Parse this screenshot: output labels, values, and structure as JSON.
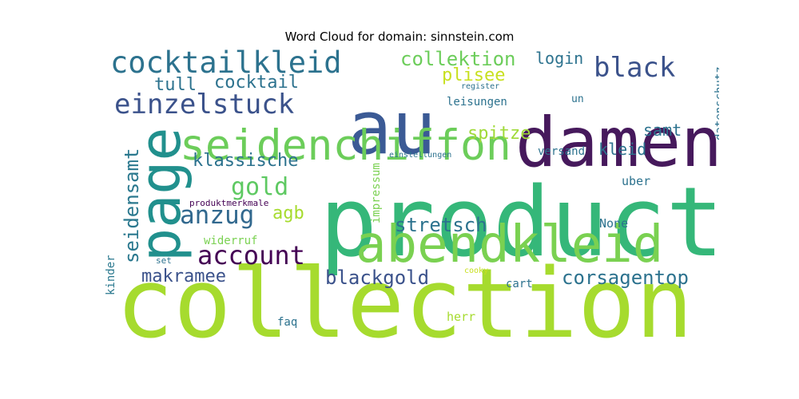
{
  "chart_data": {
    "type": "wordcloud",
    "title": "Word Cloud for domain: sinnstein.com",
    "words": [
      {
        "text": "collection",
        "weight": 100,
        "color": "#a6db2e",
        "vertical": false
      },
      {
        "text": "product",
        "weight": 92,
        "color": "#35b779",
        "vertical": false
      },
      {
        "text": "au",
        "weight": 70,
        "color": "#3b5a95",
        "vertical": false
      },
      {
        "text": "damen",
        "weight": 70,
        "color": "#46195c",
        "vertical": false
      },
      {
        "text": "page",
        "weight": 60,
        "color": "#21908d",
        "vertical": true
      },
      {
        "text": "abendkleid",
        "weight": 55,
        "color": "#7ad151",
        "vertical": false
      },
      {
        "text": "seidenchiffon",
        "weight": 48,
        "color": "#6ccd5a",
        "vertical": false
      },
      {
        "text": "cocktailkleid",
        "weight": 32,
        "color": "#2c728e",
        "vertical": false
      },
      {
        "text": "einzelstuck",
        "weight": 30,
        "color": "#3b528b",
        "vertical": false
      },
      {
        "text": "black",
        "weight": 30,
        "color": "#3b528b",
        "vertical": false
      },
      {
        "text": "account",
        "weight": 28,
        "color": "#440154",
        "vertical": false
      },
      {
        "text": "anzug",
        "weight": 28,
        "color": "#31688e",
        "vertical": false
      },
      {
        "text": "gold",
        "weight": 27,
        "color": "#5ec962",
        "vertical": false
      },
      {
        "text": "seidensamt",
        "weight": 24,
        "color": "#2a788e",
        "vertical": true
      },
      {
        "text": "collektion",
        "weight": 22,
        "color": "#6ccd5a",
        "vertical": false
      },
      {
        "text": "stretsch",
        "weight": 22,
        "color": "#2c728e",
        "vertical": false
      },
      {
        "text": "corsagentop",
        "weight": 22,
        "color": "#2c728e",
        "vertical": false
      },
      {
        "text": "blackgold",
        "weight": 22,
        "color": "#3b528b",
        "vertical": false
      },
      {
        "text": "klassische",
        "weight": 20,
        "color": "#2c728e",
        "vertical": false
      },
      {
        "text": "tull",
        "weight": 20,
        "color": "#2c728e",
        "vertical": false
      },
      {
        "text": "cocktail",
        "weight": 20,
        "color": "#2c728e",
        "vertical": false
      },
      {
        "text": "plisee",
        "weight": 20,
        "color": "#c8e020",
        "vertical": false
      },
      {
        "text": "spitze",
        "weight": 20,
        "color": "#a0da39",
        "vertical": false
      },
      {
        "text": "makramee",
        "weight": 20,
        "color": "#3b528b",
        "vertical": false
      },
      {
        "text": "agb",
        "weight": 20,
        "color": "#a6db2e",
        "vertical": false
      },
      {
        "text": "samt",
        "weight": 18,
        "color": "#2c728e",
        "vertical": false
      },
      {
        "text": "kleid",
        "weight": 18,
        "color": "#2c728e",
        "vertical": false
      },
      {
        "text": "login",
        "weight": 18,
        "color": "#2c728e",
        "vertical": false
      },
      {
        "text": "leisungen",
        "weight": 13,
        "color": "#2c728e",
        "vertical": false
      },
      {
        "text": "impressum",
        "weight": 12,
        "color": "#7ad151",
        "vertical": true
      },
      {
        "text": "datenschutz",
        "weight": 12,
        "color": "#2c728e",
        "vertical": true
      },
      {
        "text": "kinder",
        "weight": 12,
        "color": "#2a788e",
        "vertical": true
      },
      {
        "text": "versand",
        "weight": 13,
        "color": "#2c728e",
        "vertical": false
      },
      {
        "text": "uber",
        "weight": 13,
        "color": "#2c728e",
        "vertical": false
      },
      {
        "text": "None",
        "weight": 13,
        "color": "#2c728e",
        "vertical": false
      },
      {
        "text": "cart",
        "weight": 13,
        "color": "#2c728e",
        "vertical": false
      },
      {
        "text": "faq",
        "weight": 13,
        "color": "#2c728e",
        "vertical": false
      },
      {
        "text": "herr",
        "weight": 13,
        "color": "#a6db2e",
        "vertical": false
      },
      {
        "text": "un",
        "weight": 12,
        "color": "#2c728e",
        "vertical": false
      },
      {
        "text": "widerruf",
        "weight": 12,
        "color": "#7ad151",
        "vertical": false
      },
      {
        "text": "einstellungen",
        "weight": 9,
        "color": "#2c728e",
        "vertical": false
      },
      {
        "text": "register",
        "weight": 9,
        "color": "#2c728e",
        "vertical": false
      },
      {
        "text": "produktmerkmale",
        "weight": 9,
        "color": "#440154",
        "vertical": false
      },
      {
        "text": "set",
        "weight": 9,
        "color": "#2c728e",
        "vertical": false
      },
      {
        "text": "cooky",
        "weight": 8,
        "color": "#c8e020",
        "vertical": false
      }
    ]
  }
}
